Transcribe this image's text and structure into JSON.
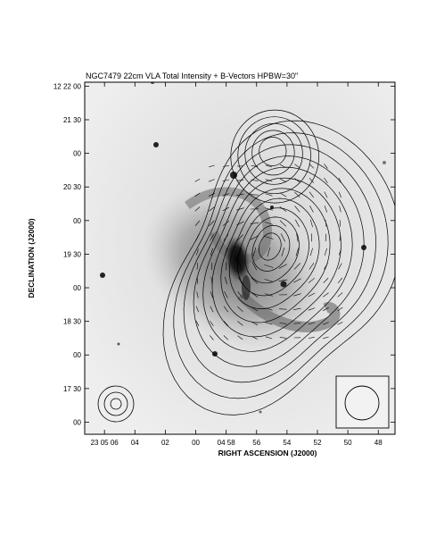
{
  "chart_data": {
    "type": "contour",
    "title": "NGC7479   22cm   VLA   Total Intensity + B-Vectors   HPBW=30\"",
    "xlabel": "RIGHT ASCENSION (J2000)",
    "ylabel": "DECLINATION (J2000)",
    "x_ticks": [
      "23 05 06",
      "04",
      "02",
      "00",
      "04 58",
      "56",
      "54",
      "52",
      "50",
      "48"
    ],
    "y_ticks": [
      "12 22 00",
      "21 30",
      "00",
      "20 30",
      "00",
      "19 30",
      "00",
      "18 30",
      "00",
      "17 30",
      "00"
    ],
    "x_tick_seconds": [
      66,
      64,
      62,
      60,
      58,
      56,
      54,
      52,
      50,
      48
    ],
    "y_tick_arcsec": [
      720,
      690,
      660,
      630,
      600,
      570,
      540,
      510,
      480,
      450,
      420
    ],
    "xlim_seconds": [
      67.3,
      46.9
    ],
    "ylim_arcsec": [
      409.2,
      723.5
    ],
    "main_source": {
      "center_seconds": 55.2,
      "center_arcsec": 572,
      "contour_levels": 12,
      "core_max_arcsec_offset": [
        0.9,
        -6
      ]
    },
    "northern_source": {
      "center_seconds": 54.8,
      "center_arcsec": 662,
      "contour_levels": 5
    },
    "beam": {
      "shown_in": [
        "lower-left",
        "lower-right-box"
      ],
      "hpbw_arcsec": 30
    },
    "background": "grayscale optical image"
  }
}
